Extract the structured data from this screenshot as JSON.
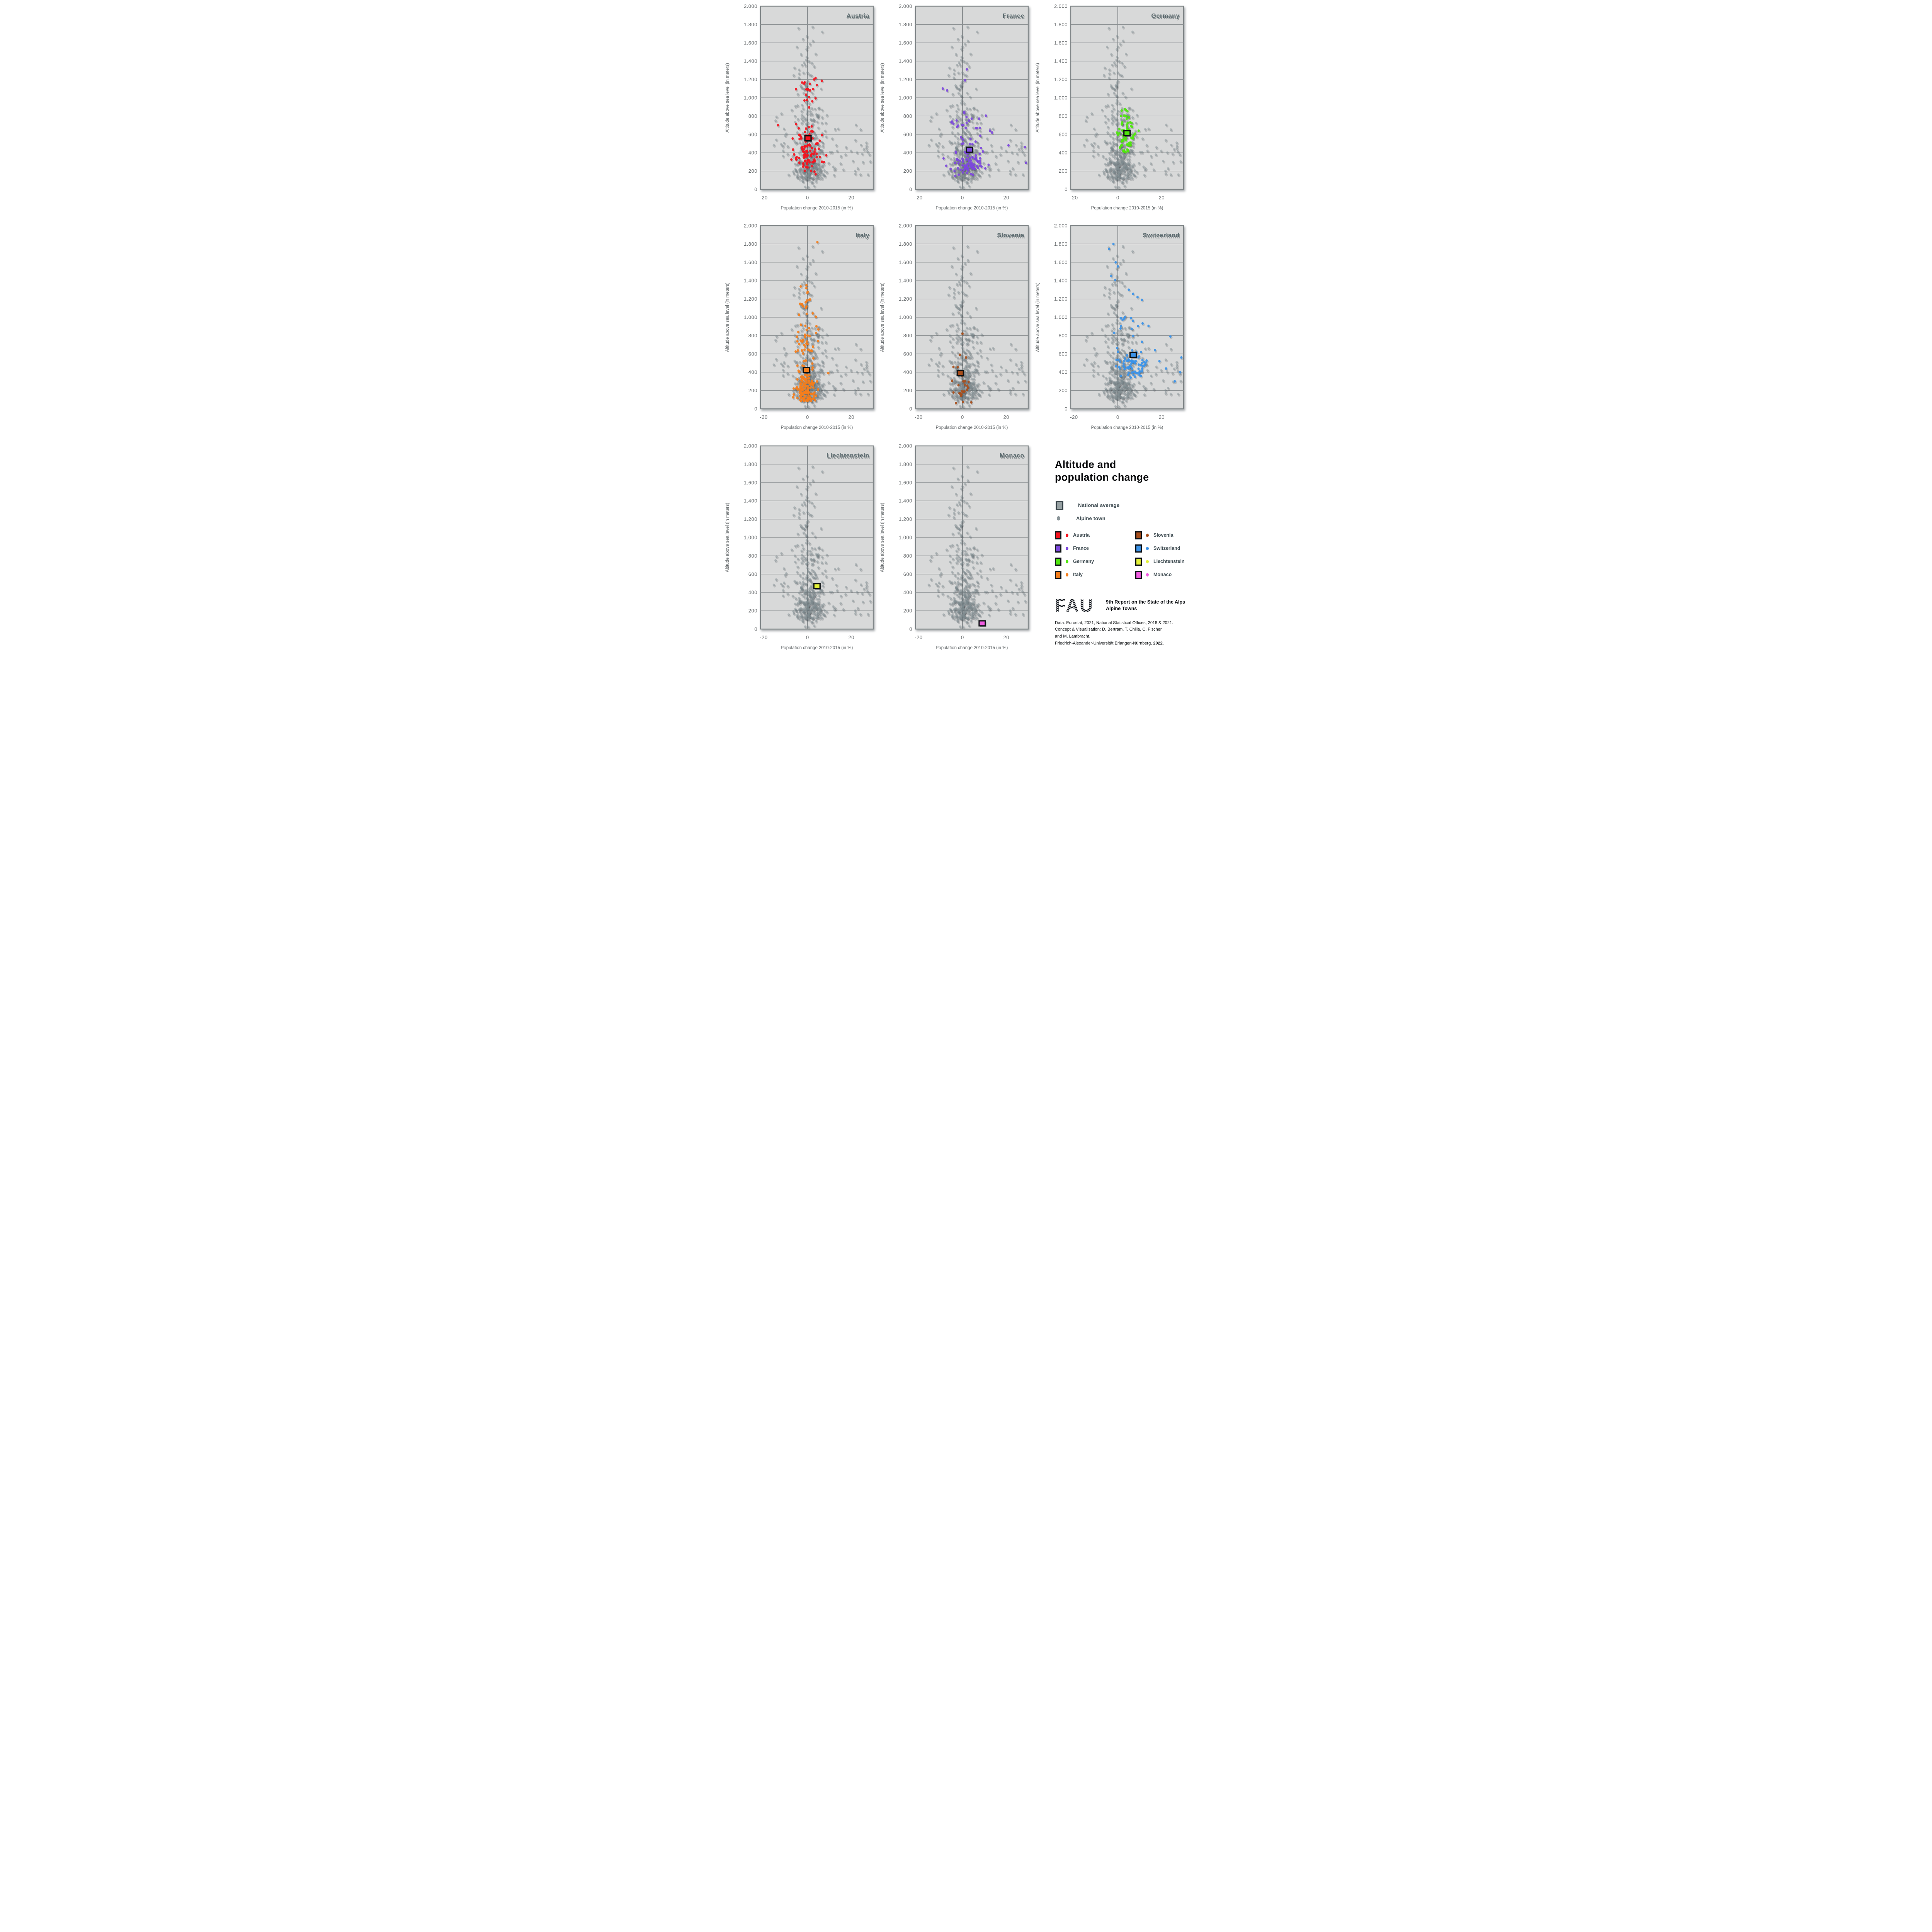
{
  "title": {
    "line1": "Altitude and",
    "line2": "population change"
  },
  "legend": {
    "national_average": "National average",
    "alpine_town": "Alpine town",
    "countries": [
      {
        "key": "austria",
        "label": "Austria"
      },
      {
        "key": "france",
        "label": "France"
      },
      {
        "key": "germany",
        "label": "Germany"
      },
      {
        "key": "italy",
        "label": "Italy"
      },
      {
        "key": "slovenia",
        "label": "Slovenia"
      },
      {
        "key": "switzerland",
        "label": "Switzerland"
      },
      {
        "key": "liechtenstein",
        "label": "Liechtenstein"
      },
      {
        "key": "monaco",
        "label": "Monaco"
      }
    ]
  },
  "footer": {
    "fau_logo_text": "FAU",
    "report_line1": "9th Report on the State of the Alps",
    "report_line2": "Alpine Towns",
    "line1": "Data: Eurostat, 2021; National Statistical Offices, 2018 & 2021.",
    "line2": "Concept & Visualisation: D. Bertram, T. Chilla, C. Fischer",
    "line3": "and M. Lambracht,",
    "line4a": "Friedrich-Alexander-Universität Erlangen-Nürnberg, ",
    "line4b": "2022."
  },
  "colors": {
    "panel_bg": "#d8d9d9",
    "panel_border": "#7e8486",
    "grid": "#8b9092",
    "zero_line": "#8b9092",
    "gray_dot": "#7e8b90",
    "dot_shadow": "rgba(28,40,46,0.16)",
    "square_border": "#0e1214",
    "panel_title": "#5d6c70",
    "austria": "#f5121d",
    "france": "#7d48dd",
    "germany": "#4fe60d",
    "italy": "#f57e1b",
    "slovenia": "#a84e1b",
    "switzerland": "#3b93e8",
    "liechtenstein": "#e4f239",
    "monaco": "#f25ce2"
  },
  "chart_data": {
    "type": "scatter",
    "title": "Altitude and population change",
    "xlabel": "Population change 2010-2015 (in %)",
    "ylabel": "Altitude above sea level (in meters)",
    "x_range": [
      -21.5,
      30
    ],
    "y_range": [
      0,
      2000
    ],
    "x_ticks": [
      -20,
      0,
      20
    ],
    "x_tick_labels": [
      "-20",
      "0",
      "20"
    ],
    "y_ticks": [
      0,
      200,
      400,
      600,
      800,
      1000,
      1200,
      1400,
      1600,
      1800,
      2000
    ],
    "y_tick_labels": [
      "0",
      "200",
      "400",
      "600",
      "800",
      "1.000",
      "1.200",
      "1.400",
      "1.600",
      "1.800",
      "2.000"
    ],
    "grid": "horizontal lines every 200 m plus vertical line at 0 %",
    "legend_position": "bottom-right cell",
    "panels": [
      {
        "key": "austria",
        "label": "Austria",
        "col": 0,
        "row": 0
      },
      {
        "key": "france",
        "label": "France",
        "col": 1,
        "row": 0
      },
      {
        "key": "germany",
        "label": "Germany",
        "col": 2,
        "row": 0
      },
      {
        "key": "italy",
        "label": "Italy",
        "col": 0,
        "row": 1
      },
      {
        "key": "slovenia",
        "label": "Slovenia",
        "col": 1,
        "row": 1
      },
      {
        "key": "switzerland",
        "label": "Switzerland",
        "col": 2,
        "row": 1
      },
      {
        "key": "liechtenstein",
        "label": "Liechtenstein",
        "col": 0,
        "row": 2
      },
      {
        "key": "monaco",
        "label": "Monaco",
        "col": 1,
        "row": 2
      }
    ],
    "national_averages": {
      "austria": {
        "x": 0.2,
        "y": 557
      },
      "france": {
        "x": 3.2,
        "y": 432
      },
      "germany": {
        "x": 4.2,
        "y": 612
      },
      "italy": {
        "x": -0.5,
        "y": 425
      },
      "slovenia": {
        "x": -1.0,
        "y": 390
      },
      "switzerland": {
        "x": 7.0,
        "y": 590
      },
      "liechtenstein": {
        "x": 4.3,
        "y": 468
      },
      "monaco": {
        "x": 9.0,
        "y": 62
      }
    },
    "gray_cloud": {
      "note": "All Alpine towns, repeated as gray backdrop in every panel; approx. 450 towns, dense between -8..+10 % and 100..900 m, sparse tail to 1.880 m, right tail to +30 %",
      "seed": 101,
      "components": [
        {
          "n": 240,
          "x": {
            "type": "normal",
            "mu": 1.3,
            "sigma": 3.4,
            "min": -9,
            "max": 11
          },
          "y": {
            "type": "foldnorm",
            "base": 110,
            "sigma": 185,
            "max": 900
          }
        },
        {
          "n": 96,
          "x": {
            "type": "normal",
            "mu": 0.8,
            "sigma": 4.6,
            "min": -12,
            "max": 14
          },
          "y": {
            "type": "uniform",
            "min": 380,
            "max": 900
          }
        },
        {
          "n": 44,
          "x": {
            "type": "normal",
            "mu": 0.5,
            "sigma": 3.6,
            "min": -8,
            "max": 9
          },
          "y": {
            "type": "uniform",
            "min": 880,
            "max": 1480
          }
        },
        {
          "n": 10,
          "x": {
            "type": "normal",
            "mu": 0,
            "sigma": 3,
            "min": -6,
            "max": 7
          },
          "y": {
            "type": "uniform",
            "min": 1500,
            "max": 1880
          }
        },
        {
          "n": 34,
          "x": {
            "type": "uniform",
            "min": 8,
            "max": 29.5
          },
          "y": {
            "type": "foldnorm",
            "base": 150,
            "sigma": 240,
            "max": 820
          }
        },
        {
          "n": 10,
          "x": {
            "type": "uniform",
            "min": -16,
            "max": -8
          },
          "y": {
            "type": "uniform",
            "min": 250,
            "max": 800
          }
        },
        {
          "n": 10,
          "x": {
            "type": "normal",
            "mu": 0.5,
            "sigma": 3,
            "min": -6,
            "max": 6
          },
          "y": {
            "type": "uniform",
            "min": 15,
            "max": 110
          }
        }
      ]
    },
    "highlight_distributions": {
      "austria": {
        "seed": 7,
        "components": [
          {
            "n": 85,
            "x": {
              "type": "normal",
              "mu": 0.3,
              "sigma": 3.4,
              "min": -9,
              "max": 9
            },
            "y": {
              "type": "foldnorm",
              "base": 290,
              "sigma": 200,
              "max": 1000
            }
          },
          {
            "n": 18,
            "x": {
              "type": "normal",
              "mu": 0.5,
              "sigma": 3,
              "min": -6,
              "max": 7
            },
            "y": {
              "type": "uniform",
              "min": 950,
              "max": 1215
            }
          },
          {
            "n": 12,
            "x": {
              "type": "normal",
              "mu": 0,
              "sigma": 2.5,
              "min": -5,
              "max": 5
            },
            "y": {
              "type": "uniform",
              "min": 160,
              "max": 290
            }
          }
        ],
        "outliers": [
          [
            -13.5,
            700
          ],
          [
            6.5,
            1185
          ],
          [
            3,
            1200
          ]
        ]
      },
      "france": {
        "seed": 13,
        "components": [
          {
            "n": 80,
            "x": {
              "type": "normal",
              "mu": 3,
              "sigma": 4.2,
              "min": -10,
              "max": 13
            },
            "y": {
              "type": "foldnorm",
              "base": 215,
              "sigma": 150,
              "max": 600
            }
          },
          {
            "n": 22,
            "x": {
              "type": "normal",
              "mu": 2,
              "sigma": 4,
              "min": -8,
              "max": 11
            },
            "y": {
              "type": "uniform",
              "min": 550,
              "max": 880
            }
          },
          {
            "n": 10,
            "x": {
              "type": "normal",
              "mu": 1,
              "sigma": 3,
              "min": -6,
              "max": 6
            },
            "y": {
              "type": "uniform",
              "min": 140,
              "max": 215
            }
          }
        ],
        "outliers": [
          [
            -9,
            1100
          ],
          [
            -7,
            1080
          ],
          [
            2,
            1310
          ],
          [
            1.2,
            1190
          ],
          [
            28.5,
            460
          ],
          [
            29,
            290
          ],
          [
            21,
            480
          ],
          [
            12.5,
            640
          ],
          [
            13.5,
            620
          ]
        ]
      },
      "germany": {
        "seed": 21,
        "components": [
          {
            "n": 58,
            "x": {
              "type": "normal",
              "mu": 4,
              "sigma": 2.3,
              "min": -0.5,
              "max": 10
            },
            "y": {
              "type": "normal",
              "mu": 595,
              "sigma": 110,
              "min": 390,
              "max": 800
            }
          },
          {
            "n": 8,
            "x": {
              "type": "normal",
              "mu": 3.5,
              "sigma": 2,
              "min": 0,
              "max": 8
            },
            "y": {
              "type": "uniform",
              "min": 790,
              "max": 915
            }
          },
          {
            "n": 6,
            "x": {
              "type": "normal",
              "mu": 3,
              "sigma": 2,
              "min": 0,
              "max": 7
            },
            "y": {
              "type": "uniform",
              "min": 400,
              "max": 440
            }
          }
        ],
        "outliers": [
          [
            1,
            455
          ],
          [
            9.5,
            640
          ]
        ]
      },
      "italy": {
        "seed": 29,
        "components": [
          {
            "n": 140,
            "x": {
              "type": "normal",
              "mu": -0.8,
              "sigma": 2.3,
              "min": -7,
              "max": 5
            },
            "y": {
              "type": "foldnorm",
              "base": 85,
              "sigma": 210,
              "max": 650
            }
          },
          {
            "n": 32,
            "x": {
              "type": "normal",
              "mu": -0.5,
              "sigma": 2.6,
              "min": -6,
              "max": 6
            },
            "y": {
              "type": "uniform",
              "min": 600,
              "max": 920
            }
          },
          {
            "n": 18,
            "x": {
              "type": "normal",
              "mu": -0.3,
              "sigma": 2.4,
              "min": -5,
              "max": 5
            },
            "y": {
              "type": "uniform",
              "min": 920,
              "max": 1360
            }
          }
        ],
        "outliers": [
          [
            4.5,
            1820
          ],
          [
            9.5,
            390
          ],
          [
            -0.5,
            1350
          ]
        ]
      },
      "slovenia": {
        "seed": 35,
        "components": [
          {
            "n": 18,
            "x": {
              "type": "normal",
              "mu": -0.8,
              "sigma": 1.9,
              "min": -5,
              "max": 3.5
            },
            "y": {
              "type": "foldnorm",
              "base": 140,
              "sigma": 160,
              "max": 560
            }
          }
        ],
        "outliers": [
          [
            0,
            820
          ],
          [
            -1.2,
            590
          ],
          [
            1.6,
            560
          ],
          [
            -3,
            62
          ],
          [
            0.2,
            76
          ],
          [
            4,
            70
          ],
          [
            2.2,
            252
          ],
          [
            2.6,
            230
          ],
          [
            -2.2,
            455
          ],
          [
            1.1,
            300
          ]
        ]
      },
      "switzerland": {
        "seed": 41,
        "components": [
          {
            "n": 72,
            "x": {
              "type": "normal",
              "mu": 7,
              "sigma": 3.6,
              "min": -1,
              "max": 17
            },
            "y": {
              "type": "normal",
              "mu": 480,
              "sigma": 95,
              "min": 330,
              "max": 700
            }
          },
          {
            "n": 14,
            "x": {
              "type": "normal",
              "mu": 5,
              "sigma": 4,
              "min": -3,
              "max": 13
            },
            "y": {
              "type": "uniform",
              "min": 700,
              "max": 1010
            }
          }
        ],
        "outliers": [
          [
            -2,
            1800
          ],
          [
            -4,
            1745
          ],
          [
            -1,
            1600
          ],
          [
            0,
            1555
          ],
          [
            -3,
            1450
          ],
          [
            -1.2,
            1405
          ],
          [
            5,
            1300
          ],
          [
            7,
            1255
          ],
          [
            9,
            1220
          ],
          [
            11,
            1190
          ],
          [
            14,
            905
          ],
          [
            29,
            560
          ],
          [
            28.5,
            400
          ],
          [
            24,
            790
          ],
          [
            22,
            440
          ],
          [
            26,
            300
          ],
          [
            17,
            640
          ],
          [
            19,
            520
          ]
        ]
      }
    }
  }
}
